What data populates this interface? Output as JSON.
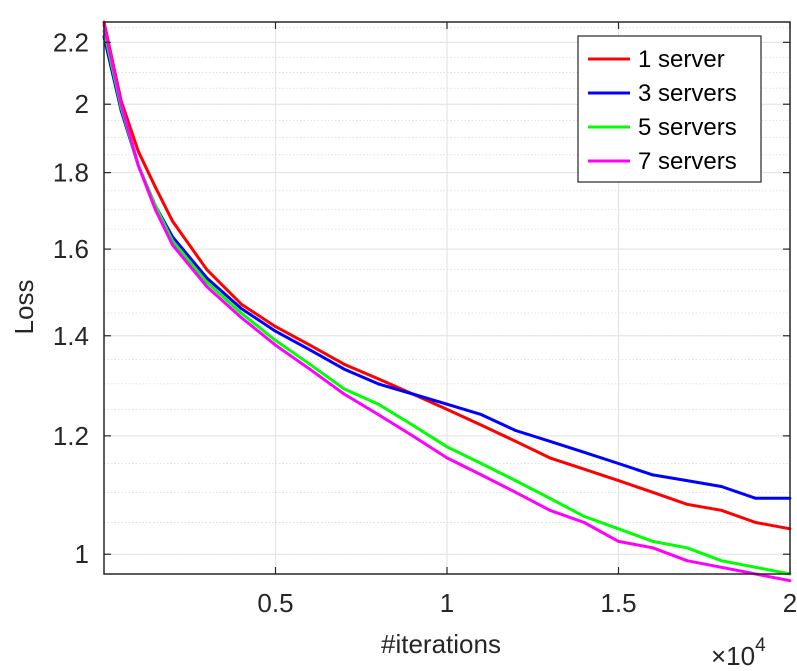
{
  "chart_data": {
    "type": "line",
    "title": "",
    "xlabel": "#iterations",
    "ylabel": "Loss",
    "x_exponent_label": "×10",
    "x_exponent_power": "4",
    "xlim": [
      0,
      20000
    ],
    "ylim": [
      0.97,
      2.27
    ],
    "yscale": "log",
    "grid": true,
    "minor_grid": true,
    "legend_position": "top-right",
    "x_ticks": [
      5000,
      10000,
      15000,
      20000
    ],
    "x_tick_labels": [
      "0.5",
      "1",
      "1.5",
      "2"
    ],
    "y_ticks": [
      1,
      1.2,
      1.4,
      1.6,
      1.8,
      2,
      2.2
    ],
    "y_tick_labels": [
      "1",
      "1.2",
      "1.4",
      "1.6",
      "1.8",
      "2",
      "2.2"
    ],
    "x": [
      0,
      500,
      1000,
      1500,
      2000,
      3000,
      4000,
      5000,
      6000,
      7000,
      8000,
      9000,
      10000,
      11000,
      12000,
      13000,
      14000,
      15000,
      16000,
      17000,
      18000,
      19000,
      20000
    ],
    "series": [
      {
        "name": "1 server",
        "color": "#ff0000",
        "values": [
          2.27,
          2.01,
          1.86,
          1.76,
          1.67,
          1.55,
          1.47,
          1.42,
          1.38,
          1.34,
          1.31,
          1.28,
          1.25,
          1.22,
          1.19,
          1.16,
          1.14,
          1.12,
          1.1,
          1.08,
          1.07,
          1.05,
          1.04
        ]
      },
      {
        "name": "3 servers",
        "color": "#0000ff",
        "values": [
          2.22,
          1.98,
          1.82,
          1.71,
          1.63,
          1.53,
          1.46,
          1.41,
          1.37,
          1.33,
          1.3,
          1.28,
          1.26,
          1.24,
          1.21,
          1.19,
          1.17,
          1.15,
          1.13,
          1.12,
          1.11,
          1.09,
          1.09
        ]
      },
      {
        "name": "5 servers",
        "color": "#00ff00",
        "values": [
          2.24,
          1.99,
          1.82,
          1.71,
          1.62,
          1.52,
          1.45,
          1.39,
          1.34,
          1.29,
          1.26,
          1.22,
          1.18,
          1.15,
          1.12,
          1.09,
          1.06,
          1.04,
          1.02,
          1.01,
          0.99,
          0.98,
          0.97
        ]
      },
      {
        "name": "7 servers",
        "color": "#ff00ff",
        "values": [
          2.26,
          2.0,
          1.82,
          1.7,
          1.61,
          1.51,
          1.44,
          1.38,
          1.33,
          1.28,
          1.24,
          1.2,
          1.16,
          1.13,
          1.1,
          1.07,
          1.05,
          1.02,
          1.01,
          0.99,
          0.98,
          0.97,
          0.96
        ]
      }
    ]
  }
}
